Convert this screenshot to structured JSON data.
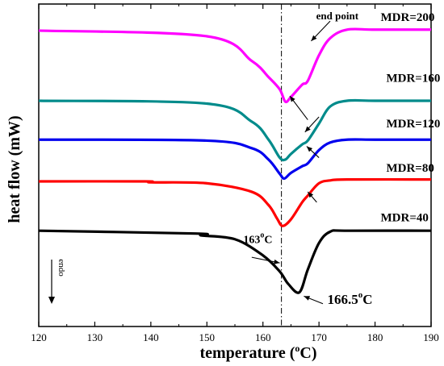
{
  "chart_data": {
    "type": "line",
    "xlabel": "temperature",
    "xlabel_unit_prefix": "(",
    "xlabel_unit_sup": "o",
    "xlabel_unit_suffix": "C)",
    "ylabel": "heat flow (mW)",
    "xlim": [
      120,
      190
    ],
    "x_ticks": [
      "120",
      "130",
      "140",
      "150",
      "160",
      "170",
      "180",
      "190"
    ],
    "grid": false,
    "series": [
      {
        "name": "MDR=200",
        "color": "#ff00ff",
        "x": [
          120,
          150,
          158,
          161,
          163,
          164,
          165,
          167,
          168,
          170,
          172,
          175,
          180,
          190
        ],
        "y": [
          392,
          386,
          360,
          343,
          330,
          317,
          322,
          335,
          339,
          366,
          384,
          393,
          393,
          393
        ]
      },
      {
        "name": "MDR=160",
        "color": "#008b8b",
        "x": [
          120,
          150,
          158,
          161,
          163,
          164,
          165,
          167,
          168,
          170,
          172,
          175,
          180,
          190
        ],
        "y": [
          318,
          315,
          296,
          277,
          258,
          256,
          262,
          272,
          276,
          294,
          312,
          318,
          318,
          318
        ]
      },
      {
        "name": "MDR=120",
        "color": "#0000ee",
        "x": [
          120,
          150,
          158,
          161,
          163,
          163.8,
          165,
          167,
          168,
          170,
          172,
          175,
          180,
          190
        ],
        "y": [
          277,
          276,
          268,
          256,
          241,
          236,
          242,
          249,
          252,
          266,
          274,
          277,
          277,
          277
        ]
      },
      {
        "name": "MDR=80",
        "color": "#ff0000",
        "x": [
          120,
          139,
          140,
          150,
          158,
          161,
          162.5,
          163.5,
          165,
          167,
          168,
          170,
          172,
          175,
          190
        ],
        "y": [
          233,
          233,
          232,
          231,
          222,
          208,
          194,
          186,
          193,
          211,
          218,
          231,
          234,
          235,
          235
        ]
      },
      {
        "name": "MDR=40",
        "color": "#000000",
        "x": [
          120,
          148,
          149,
          155,
          160,
          163,
          164.5,
          166.5,
          168,
          170,
          172,
          175,
          190
        ],
        "y": [
          181,
          178,
          176,
          172,
          155,
          138,
          125,
          116,
          140,
          168,
          180,
          181,
          181
        ]
      }
    ],
    "series_labels": [
      {
        "text": "MDR=200",
        "x": 181,
        "y": 402
      },
      {
        "text": "MDR=160",
        "x": 182,
        "y": 338
      },
      {
        "text": "MDR=120",
        "x": 182,
        "y": 290
      },
      {
        "text": "MDR=80",
        "x": 182,
        "y": 243
      },
      {
        "text": "MDR=40",
        "x": 181,
        "y": 191
      }
    ],
    "vline": {
      "x": 163.3,
      "style": "dash-dot"
    },
    "annotations": [
      {
        "id": "end_point",
        "text": "end point",
        "x": 169.5,
        "y": 404
      },
      {
        "id": "t163",
        "text_main": "163",
        "text_sup": "o",
        "text_suffix": "C",
        "x": 156.5,
        "y": 168
      },
      {
        "id": "t1665",
        "text_main": "166.5",
        "text_sup": "o",
        "text_suffix": "C",
        "x": 171.5,
        "y": 104
      },
      {
        "id": "endo",
        "text": "endo"
      }
    ],
    "arrows": [
      {
        "from": [
          172,
          402
        ],
        "to": [
          168.6,
          381
        ]
      },
      {
        "from": [
          168,
          298
        ],
        "to": [
          164.8,
          323
        ]
      },
      {
        "from": [
          170,
          301
        ],
        "to": [
          167.5,
          285
        ]
      },
      {
        "from": [
          170,
          258
        ],
        "to": [
          167.8,
          270
        ]
      },
      {
        "from": [
          169.6,
          211
        ],
        "to": [
          168,
          222
        ]
      },
      {
        "from": [
          158,
          153
        ],
        "to": [
          163,
          147
        ]
      },
      {
        "from": [
          170.7,
          104
        ],
        "to": [
          167.3,
          112
        ]
      }
    ],
    "ydata_range": [
      80,
      420
    ]
  }
}
